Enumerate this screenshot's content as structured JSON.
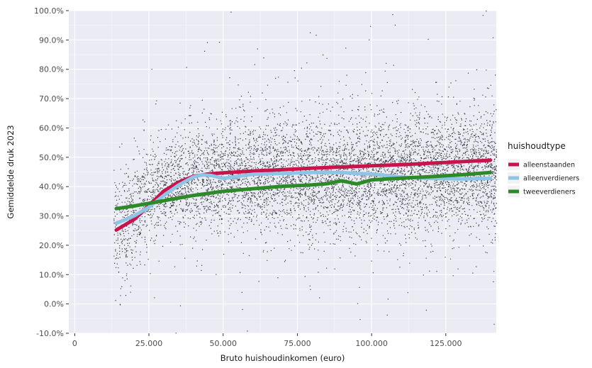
{
  "chart_data": {
    "type": "scatter",
    "title": "",
    "xlabel": "Bruto huishoudinkomen (euro)",
    "ylabel": "Gemiddelde druk 2023",
    "xlim": [
      -2000,
      142000
    ],
    "ylim": [
      -10,
      100
    ],
    "x_ticks": [
      0,
      25000,
      50000,
      75000,
      100000,
      125000
    ],
    "x_tick_labels": [
      "0",
      "25.000",
      "50.000",
      "75.000",
      "100.000",
      "125.000"
    ],
    "y_ticks": [
      -10,
      0,
      10,
      20,
      30,
      40,
      50,
      60,
      70,
      80,
      90,
      100
    ],
    "y_tick_labels": [
      "-10.0%",
      "0.0%",
      "10.0%",
      "20.0%",
      "30.0%",
      "40.0%",
      "50.0%",
      "60.0%",
      "70.0%",
      "80.0%",
      "90.0%",
      "100.0%"
    ],
    "grid": true,
    "legend": {
      "title": "huishoudtype",
      "placement": "right"
    },
    "scatter": {
      "description_only": "dense cloud of individual household points",
      "color": "#1a1a1a",
      "approx_x_range": [
        13000,
        142000
      ],
      "approx_center_line": [
        {
          "x": 15000,
          "y": 25
        },
        {
          "x": 25000,
          "y": 38
        },
        {
          "x": 40000,
          "y": 43
        },
        {
          "x": 60000,
          "y": 44
        },
        {
          "x": 90000,
          "y": 44
        },
        {
          "x": 120000,
          "y": 45
        },
        {
          "x": 140000,
          "y": 46
        }
      ]
    },
    "series": [
      {
        "name": "alleenstaanden",
        "color": "#c7144a",
        "x": [
          14000,
          20000,
          25000,
          30000,
          35000,
          40000,
          45000,
          50000,
          60000,
          70000,
          80000,
          90000,
          100000,
          110000,
          120000,
          130000,
          140000
        ],
        "y": [
          25.2,
          28.8,
          33.5,
          38.5,
          41.5,
          43.5,
          44.3,
          44.7,
          45.3,
          45.8,
          46.3,
          46.7,
          47.1,
          47.5,
          48.0,
          48.5,
          49.0
        ]
      },
      {
        "name": "alleenverdieners",
        "color": "#8ec5e6",
        "x": [
          14000,
          20000,
          25000,
          30000,
          35000,
          40000,
          43000,
          46000,
          50000,
          55000,
          60000,
          70000,
          80000,
          90000,
          95000,
          100000,
          105000,
          110000,
          120000,
          130000,
          140000
        ],
        "y": [
          27.5,
          30.0,
          33.0,
          37.0,
          40.5,
          43.3,
          44.0,
          43.8,
          42.8,
          43.5,
          44.2,
          44.5,
          44.8,
          44.8,
          44.5,
          44.3,
          43.8,
          43.2,
          42.8,
          42.6,
          42.8
        ]
      },
      {
        "name": "tweeverdieners",
        "color": "#2d8a28",
        "x": [
          14000,
          20000,
          30000,
          40000,
          50000,
          60000,
          70000,
          80000,
          85000,
          90000,
          95000,
          100000,
          105000,
          110000,
          120000,
          130000,
          140000
        ],
        "y": [
          32.5,
          33.4,
          35.2,
          37.0,
          38.4,
          39.3,
          40.1,
          40.6,
          41.0,
          42.0,
          40.9,
          42.3,
          42.6,
          42.9,
          43.4,
          44.0,
          44.8
        ]
      }
    ]
  }
}
